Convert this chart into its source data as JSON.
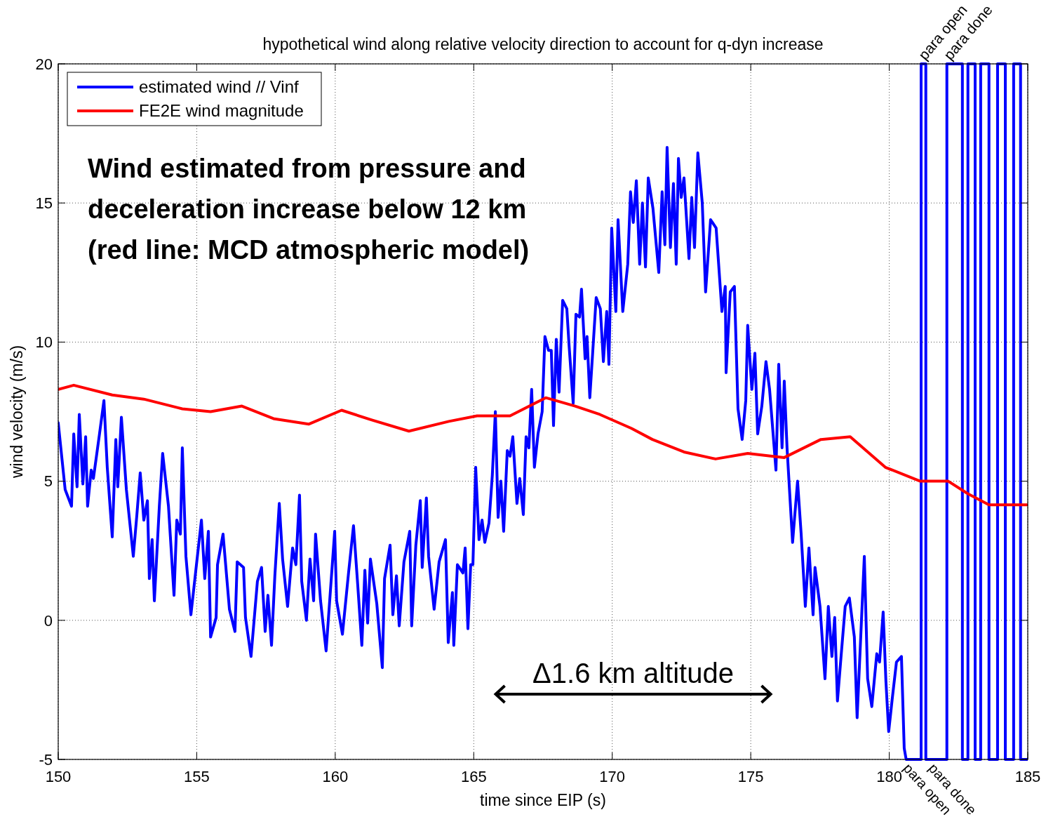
{
  "chart_data": {
    "type": "line",
    "title": "hypothetical wind along relative velocity direction to account for q-dyn increase",
    "xlabel": "time since EIP (s)",
    "ylabel": "wind velocity (m/s)",
    "xlim": [
      150,
      185
    ],
    "xticks": [
      150,
      155,
      160,
      165,
      170,
      175,
      180,
      185
    ],
    "ylim": [
      -5,
      20
    ],
    "yticks": [
      -5,
      0,
      5,
      10,
      15,
      20
    ],
    "grid": true,
    "legend": "top left",
    "line_style": "solid",
    "marker": "none",
    "annotations": [
      "Wind estimated from pressure and\ndeceleration increase below 12 km\n(red line: MCD atmospheric model)",
      "Δ1.6 km altitude",
      "para open",
      "para done",
      "para open",
      "para done"
    ],
    "series": [
      {
        "name": "estimated wind // Vinf",
        "color": "#0000ff",
        "x": [
          150.0,
          150.25,
          150.48,
          150.56,
          150.68,
          150.76,
          150.89,
          150.99,
          151.06,
          151.19,
          151.27,
          151.49,
          151.65,
          151.77,
          151.95,
          152.08,
          152.15,
          152.28,
          152.46,
          152.71,
          152.84,
          152.96,
          153.09,
          153.22,
          153.29,
          153.39,
          153.47,
          153.65,
          153.77,
          153.98,
          154.18,
          154.28,
          154.41,
          154.48,
          154.61,
          154.79,
          154.99,
          155.17,
          155.29,
          155.42,
          155.5,
          155.7,
          155.75,
          155.95,
          156.18,
          156.38,
          156.46,
          156.69,
          156.76,
          156.96,
          157.19,
          157.34,
          157.47,
          157.57,
          157.7,
          157.82,
          157.98,
          158.1,
          158.28,
          158.46,
          158.58,
          158.71,
          158.79,
          158.96,
          159.09,
          159.22,
          159.29,
          159.47,
          159.67,
          159.98,
          160.05,
          160.26,
          160.48,
          160.66,
          160.81,
          160.96,
          161.07,
          161.17,
          161.27,
          161.5,
          161.7,
          161.78,
          161.98,
          162.08,
          162.21,
          162.31,
          162.48,
          162.69,
          162.76,
          162.91,
          163.07,
          163.14,
          163.29,
          163.37,
          163.57,
          163.75,
          163.98,
          164.08,
          164.23,
          164.28,
          164.41,
          164.61,
          164.69,
          164.79,
          164.89,
          164.97,
          165.07,
          165.19,
          165.3,
          165.4,
          165.55,
          165.67,
          165.78,
          165.88,
          165.98,
          166.08,
          166.21,
          166.31,
          166.41,
          166.56,
          166.66,
          166.79,
          166.89,
          166.99,
          167.09,
          167.19,
          167.32,
          167.47,
          167.57,
          167.7,
          167.8,
          167.88,
          167.98,
          168.08,
          168.21,
          168.36,
          168.44,
          168.59,
          168.69,
          168.82,
          168.89,
          169.02,
          169.09,
          169.19,
          169.42,
          169.57,
          169.68,
          169.8,
          169.88,
          169.98,
          170.13,
          170.21,
          170.38,
          170.56,
          170.66,
          170.76,
          170.87,
          170.99,
          171.09,
          171.2,
          171.3,
          171.47,
          171.68,
          171.8,
          171.9,
          171.98,
          172.1,
          172.21,
          172.31,
          172.39,
          172.49,
          172.59,
          172.77,
          172.87,
          172.97,
          173.09,
          173.25,
          173.37,
          173.55,
          173.75,
          173.96,
          174.08,
          174.11,
          174.26,
          174.41,
          174.54,
          174.69,
          174.82,
          174.89,
          175.04,
          175.15,
          175.25,
          175.4,
          175.55,
          175.68,
          175.91,
          176.01,
          176.13,
          176.21,
          176.31,
          176.51,
          176.69,
          176.82,
          176.97,
          177.1,
          177.25,
          177.32,
          177.5,
          177.68,
          177.8,
          177.93,
          178.03,
          178.13,
          178.26,
          178.41,
          178.56,
          178.74,
          178.84,
          178.97,
          179.1,
          179.22,
          179.37,
          179.55,
          179.65,
          179.78,
          179.88,
          179.98,
          180.11,
          180.26,
          180.44,
          180.54,
          180.61,
          181.15,
          181.15,
          181.32,
          181.32,
          182.08,
          182.08,
          182.64,
          182.64,
          182.84,
          182.84,
          183.1,
          183.1,
          183.3,
          183.3,
          183.6,
          183.6,
          183.91,
          183.91,
          184.19,
          184.19,
          184.49,
          184.49,
          184.74,
          184.74,
          185
        ],
        "values": [
          7.1,
          4.7,
          4.1,
          6.7,
          4.8,
          7.4,
          4.9,
          6.6,
          4.1,
          5.4,
          5.1,
          6.7,
          7.9,
          5.5,
          3.0,
          6.5,
          4.8,
          7.3,
          4.7,
          2.3,
          3.8,
          5.3,
          3.6,
          4.3,
          1.5,
          2.9,
          0.7,
          4.1,
          6.0,
          4.1,
          0.9,
          3.6,
          3.1,
          6.2,
          2.3,
          0.2,
          2.0,
          3.6,
          1.5,
          3.2,
          -0.6,
          0.1,
          2.0,
          3.1,
          0.4,
          -0.4,
          2.1,
          1.9,
          0.1,
          -1.3,
          1.4,
          1.9,
          -0.4,
          0.9,
          -0.9,
          1.6,
          4.2,
          2.2,
          0.5,
          2.6,
          2.0,
          4.5,
          1.4,
          0.0,
          2.2,
          0.7,
          3.1,
          0.7,
          -1.1,
          3.2,
          0.7,
          -0.5,
          1.7,
          3.4,
          1.3,
          -0.9,
          1.8,
          -0.1,
          2.2,
          0.6,
          -1.7,
          1.5,
          2.7,
          0.2,
          1.6,
          -0.2,
          2.1,
          3.2,
          -0.2,
          2.7,
          4.3,
          1.9,
          4.4,
          2.3,
          0.4,
          2.1,
          2.9,
          -0.8,
          1.0,
          -0.9,
          2.0,
          1.7,
          2.6,
          -0.3,
          2.0,
          2.0,
          5.5,
          2.9,
          3.6,
          2.8,
          3.5,
          5.2,
          7.5,
          3.7,
          5.0,
          3.2,
          6.1,
          5.9,
          6.6,
          4.2,
          5.1,
          3.8,
          6.6,
          6.2,
          8.3,
          5.5,
          6.7,
          7.5,
          10.2,
          9.7,
          9.7,
          7.0,
          10.1,
          8.2,
          11.5,
          11.2,
          9.9,
          7.8,
          11.0,
          10.9,
          11.9,
          9.4,
          10.2,
          8.0,
          11.6,
          11.2,
          9.3,
          11.1,
          9.2,
          14.1,
          11.1,
          14.4,
          11.1,
          12.8,
          15.4,
          14.3,
          15.8,
          12.8,
          15.0,
          12.7,
          15.9,
          14.8,
          12.5,
          15.4,
          13.5,
          17.0,
          13.4,
          15.7,
          12.8,
          16.6,
          15.2,
          15.9,
          13.0,
          15.2,
          13.4,
          16.8,
          15.0,
          11.8,
          14.4,
          14.1,
          11.1,
          12.0,
          8.9,
          11.8,
          12.0,
          7.6,
          6.5,
          7.9,
          10.6,
          8.3,
          9.6,
          6.7,
          7.7,
          9.3,
          8.3,
          5.4,
          9.2,
          6.2,
          8.6,
          6.2,
          2.8,
          5.0,
          3.1,
          0.5,
          2.6,
          0.2,
          1.9,
          0.5,
          -2.1,
          0.5,
          -1.3,
          0.1,
          -2.9,
          -1.3,
          0.5,
          0.8,
          -0.6,
          -3.5,
          -0.6,
          2.3,
          -2.1,
          -3.1,
          -1.2,
          -1.5,
          0.3,
          -2.2,
          -4.0,
          -2.8,
          -1.5,
          -1.3,
          -4.6,
          -5,
          -5,
          20,
          20,
          -5,
          -5,
          20,
          20,
          -5,
          -5,
          20,
          20,
          -5,
          -5,
          20,
          20,
          -5,
          -5,
          20,
          20,
          -5,
          -5,
          20,
          20,
          -5,
          -5
        ]
      },
      {
        "name": "FE2E wind magnitude",
        "color": "#ff0000",
        "x": [
          150,
          150.56,
          151.95,
          153.09,
          154.48,
          155.5,
          156.63,
          157.77,
          159.04,
          160.23,
          161.32,
          162.66,
          164.1,
          165.12,
          166.31,
          167.6,
          168.66,
          169.55,
          170.69,
          171.45,
          172.59,
          173.73,
          174.89,
          176.21,
          177.53,
          178.59,
          179.86,
          181.12,
          182.13,
          182.84,
          183.6,
          185
        ],
        "values": [
          8.3,
          8.45,
          8.1,
          7.95,
          7.6,
          7.5,
          7.7,
          7.25,
          7.05,
          7.55,
          7.2,
          6.8,
          7.15,
          7.35,
          7.35,
          8.0,
          7.7,
          7.4,
          6.9,
          6.5,
          6.05,
          5.8,
          6.0,
          5.85,
          6.5,
          6.6,
          5.5,
          5.0,
          5.0,
          4.55,
          4.15,
          4.15
        ]
      }
    ]
  }
}
